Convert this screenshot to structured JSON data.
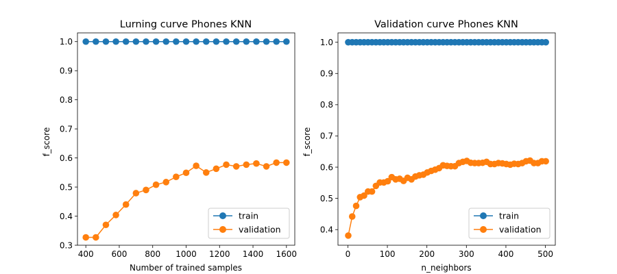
{
  "colors": {
    "train": "#1f77b4",
    "validation": "#ff7f0e"
  },
  "chart_data": [
    {
      "type": "line",
      "title": "Lurning curve Phones KNN",
      "xlabel": "Number of trained samples",
      "ylabel": "f_score",
      "xlim": [
        350,
        1650
      ],
      "ylim": [
        0.3,
        1.03
      ],
      "xticks": [
        400,
        600,
        800,
        1000,
        1200,
        1400,
        1600
      ],
      "yticks": [
        0.3,
        0.4,
        0.5,
        0.6,
        0.7,
        0.8,
        0.9,
        1.0
      ],
      "ytick_labels": [
        "0.3",
        "0.4",
        "0.5",
        "0.6",
        "0.7",
        "0.8",
        "0.9",
        "1.0"
      ],
      "legend_loc": "lower-right",
      "grid": false,
      "x": [
        400,
        460,
        520,
        580,
        640,
        700,
        760,
        820,
        880,
        940,
        1000,
        1060,
        1120,
        1180,
        1240,
        1300,
        1360,
        1420,
        1480,
        1540,
        1600
      ],
      "series": [
        {
          "name": "train",
          "color_key": "train",
          "values": [
            1.0,
            1.0,
            1.0,
            1.0,
            1.0,
            1.0,
            1.0,
            1.0,
            1.0,
            1.0,
            1.0,
            1.0,
            1.0,
            1.0,
            1.0,
            1.0,
            1.0,
            1.0,
            1.0,
            1.0,
            1.0
          ]
        },
        {
          "name": "validation",
          "color_key": "validation",
          "values": [
            0.327,
            0.327,
            0.37,
            0.404,
            0.44,
            0.479,
            0.49,
            0.508,
            0.517,
            0.535,
            0.549,
            0.573,
            0.55,
            0.563,
            0.577,
            0.571,
            0.577,
            0.581,
            0.571,
            0.584,
            0.584
          ]
        }
      ]
    },
    {
      "type": "line",
      "title": "Validation curve Phones KNN",
      "xlabel": "n_neighbors",
      "ylabel": "f_score",
      "xlim": [
        -25,
        525
      ],
      "ylim": [
        0.35,
        1.03
      ],
      "xticks": [
        0,
        100,
        200,
        300,
        400,
        500
      ],
      "yticks": [
        0.4,
        0.5,
        0.6,
        0.7,
        0.8,
        0.9,
        1.0
      ],
      "ytick_labels": [
        "0.4",
        "0.5",
        "0.6",
        "0.7",
        "0.8",
        "0.9",
        "1.0"
      ],
      "legend_loc": "lower-right",
      "grid": false,
      "x": [
        1,
        11,
        21,
        31,
        41,
        51,
        61,
        71,
        81,
        91,
        101,
        111,
        121,
        131,
        141,
        151,
        161,
        171,
        181,
        191,
        201,
        211,
        221,
        231,
        241,
        251,
        261,
        271,
        281,
        291,
        301,
        311,
        321,
        331,
        341,
        351,
        361,
        371,
        381,
        391,
        401,
        411,
        421,
        431,
        441,
        451,
        461,
        471,
        481,
        491,
        501
      ],
      "series": [
        {
          "name": "train",
          "color_key": "train",
          "values": [
            1.0,
            1.0,
            1.0,
            1.0,
            1.0,
            1.0,
            1.0,
            1.0,
            1.0,
            1.0,
            1.0,
            1.0,
            1.0,
            1.0,
            1.0,
            1.0,
            1.0,
            1.0,
            1.0,
            1.0,
            1.0,
            1.0,
            1.0,
            1.0,
            1.0,
            1.0,
            1.0,
            1.0,
            1.0,
            1.0,
            1.0,
            1.0,
            1.0,
            1.0,
            1.0,
            1.0,
            1.0,
            1.0,
            1.0,
            1.0,
            1.0,
            1.0,
            1.0,
            1.0,
            1.0,
            1.0,
            1.0,
            1.0,
            1.0,
            1.0,
            1.0
          ]
        },
        {
          "name": "validation",
          "color_key": "validation",
          "values": [
            0.381,
            0.442,
            0.476,
            0.504,
            0.509,
            0.522,
            0.522,
            0.54,
            0.551,
            0.551,
            0.555,
            0.568,
            0.561,
            0.563,
            0.556,
            0.566,
            0.561,
            0.57,
            0.574,
            0.576,
            0.583,
            0.588,
            0.592,
            0.597,
            0.606,
            0.604,
            0.603,
            0.603,
            0.613,
            0.617,
            0.62,
            0.614,
            0.613,
            0.613,
            0.614,
            0.617,
            0.61,
            0.61,
            0.613,
            0.612,
            0.61,
            0.608,
            0.611,
            0.61,
            0.613,
            0.619,
            0.621,
            0.613,
            0.613,
            0.619,
            0.619
          ]
        }
      ]
    }
  ]
}
